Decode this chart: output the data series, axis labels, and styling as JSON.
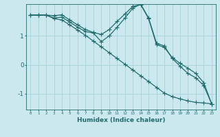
{
  "xlabel": "Humidex (Indice chaleur)",
  "bg_color": "#cce8ef",
  "grid_color": "#aad4dc",
  "line_color": "#1f6b6b",
  "xlim": [
    -0.5,
    23.5
  ],
  "ylim": [
    -1.55,
    2.1
  ],
  "yticks": [
    -1,
    0,
    1
  ],
  "xticks": [
    0,
    1,
    2,
    3,
    4,
    5,
    6,
    7,
    8,
    9,
    10,
    11,
    12,
    13,
    14,
    15,
    16,
    17,
    18,
    19,
    20,
    21,
    22,
    23
  ],
  "line1_x": [
    0,
    1,
    2,
    3,
    4,
    5,
    6,
    7,
    8,
    9,
    10,
    11,
    12,
    13,
    14,
    15,
    16,
    17,
    18,
    19,
    20,
    21,
    22,
    23
  ],
  "line1_y": [
    1.72,
    1.72,
    1.72,
    1.6,
    1.55,
    1.38,
    1.2,
    1.02,
    0.82,
    0.62,
    0.42,
    0.22,
    0.02,
    -0.18,
    -0.38,
    -0.58,
    -0.78,
    -0.98,
    -1.1,
    -1.18,
    -1.25,
    -1.3,
    -1.32,
    -1.35
  ],
  "line2_x": [
    0,
    1,
    2,
    3,
    4,
    5,
    6,
    7,
    8,
    9,
    10,
    11,
    12,
    13,
    14,
    15,
    16,
    17,
    18,
    19,
    20,
    21,
    22,
    23
  ],
  "line2_y": [
    1.72,
    1.72,
    1.72,
    1.7,
    1.73,
    1.55,
    1.38,
    1.22,
    1.12,
    1.05,
    1.22,
    1.5,
    1.76,
    2.02,
    2.08,
    1.6,
    0.7,
    0.6,
    0.25,
    0.05,
    -0.12,
    -0.3,
    -0.62,
    -1.35
  ],
  "line3_x": [
    0,
    1,
    2,
    3,
    4,
    5,
    6,
    7,
    8,
    9,
    10,
    11,
    12,
    13,
    14,
    15,
    16,
    17,
    18,
    19,
    20,
    21,
    22,
    23
  ],
  "line3_y": [
    1.72,
    1.72,
    1.72,
    1.62,
    1.65,
    1.48,
    1.3,
    1.15,
    1.1,
    0.8,
    1.0,
    1.3,
    1.62,
    1.96,
    2.1,
    1.62,
    0.75,
    0.65,
    0.22,
    -0.05,
    -0.3,
    -0.45,
    -0.72,
    -1.35
  ]
}
